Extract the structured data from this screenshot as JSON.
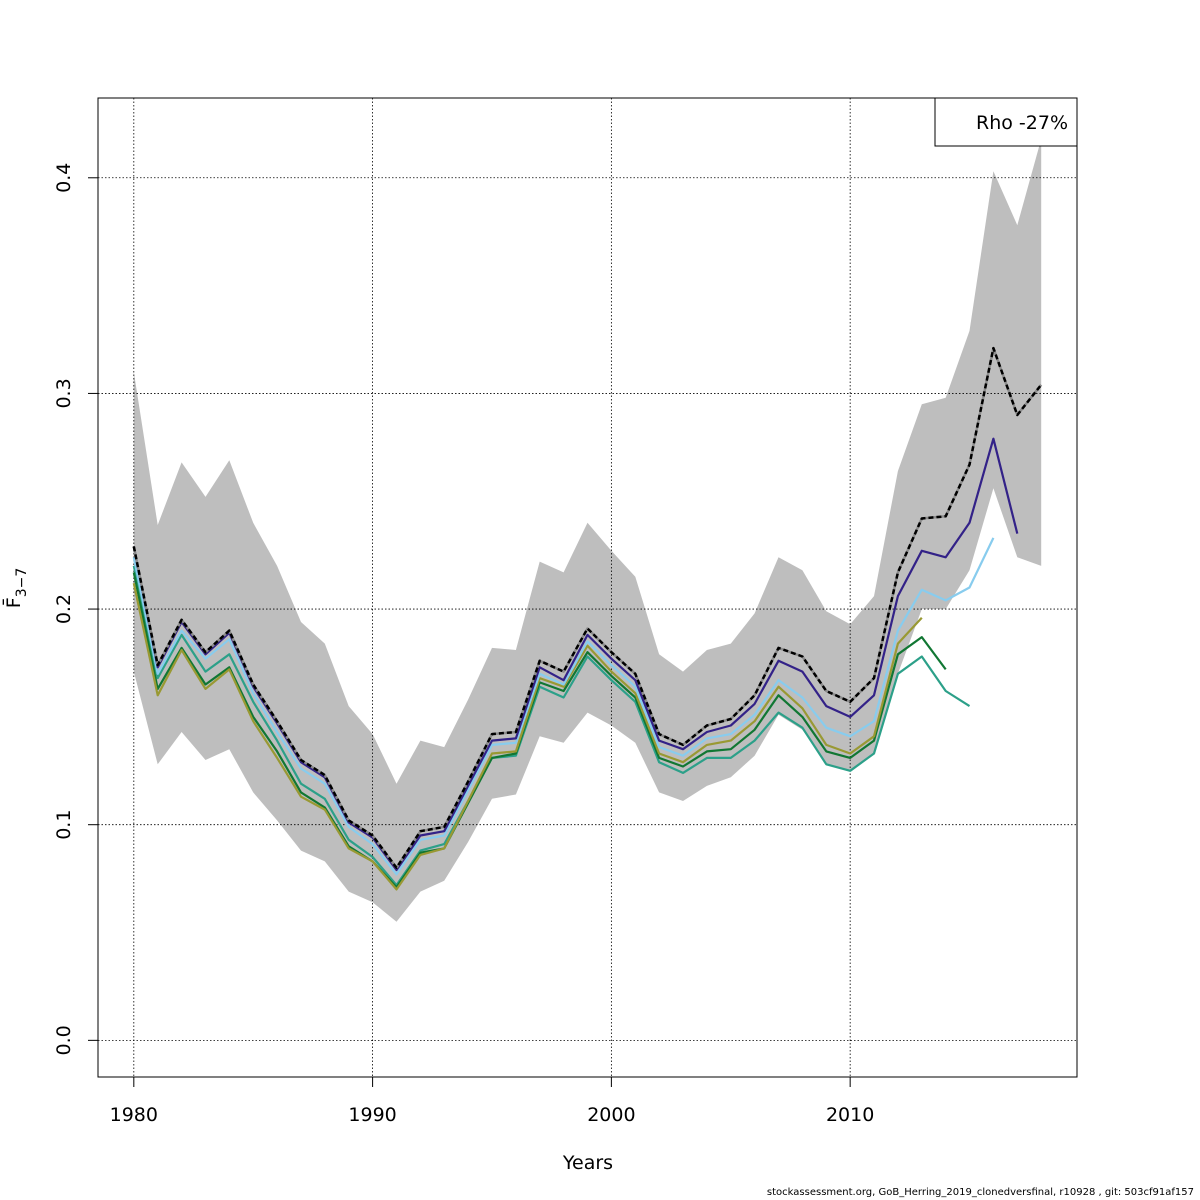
{
  "chart_data": {
    "type": "line",
    "xlabel": "Years",
    "ylabel": "F̄",
    "ylabel_sub": "3−7",
    "xlim": [
      1978.5,
      2019.5
    ],
    "ylim": [
      -0.017,
      0.437
    ],
    "xticks": [
      1980,
      1990,
      2000,
      2010
    ],
    "xtick_labels": [
      "1980",
      "1990",
      "2000",
      "2010"
    ],
    "yticks": [
      0.0,
      0.1,
      0.2,
      0.3,
      0.4
    ],
    "ytick_labels": [
      "0.0",
      "0.1",
      "0.2",
      "0.3",
      "0.4"
    ],
    "grid": true,
    "legend": {
      "text": "Rho -27%",
      "placement": "top-right"
    },
    "band": {
      "color": "#bebebe",
      "x": [
        1980,
        1981,
        1982,
        1983,
        1984,
        1985,
        1986,
        1987,
        1988,
        1989,
        1990,
        1991,
        1992,
        1993,
        1994,
        1995,
        1996,
        1997,
        1998,
        1999,
        2000,
        2001,
        2002,
        2003,
        2004,
        2005,
        2006,
        2007,
        2008,
        2009,
        2010,
        2011,
        2012,
        2013,
        2014,
        2015,
        2016,
        2017,
        2018
      ],
      "upper": [
        0.31,
        0.239,
        0.268,
        0.252,
        0.269,
        0.24,
        0.22,
        0.194,
        0.184,
        0.155,
        0.142,
        0.119,
        0.139,
        0.136,
        0.158,
        0.182,
        0.181,
        0.222,
        0.217,
        0.24,
        0.227,
        0.215,
        0.179,
        0.171,
        0.181,
        0.184,
        0.198,
        0.224,
        0.218,
        0.199,
        0.193,
        0.206,
        0.264,
        0.295,
        0.298,
        0.329,
        0.403,
        0.378,
        0.418
      ],
      "lower": [
        0.171,
        0.128,
        0.143,
        0.13,
        0.135,
        0.115,
        0.102,
        0.088,
        0.083,
        0.069,
        0.064,
        0.055,
        0.069,
        0.074,
        0.092,
        0.112,
        0.114,
        0.141,
        0.138,
        0.152,
        0.146,
        0.138,
        0.115,
        0.111,
        0.118,
        0.122,
        0.132,
        0.151,
        0.144,
        0.128,
        0.125,
        0.133,
        0.17,
        0.2,
        0.2,
        0.218,
        0.256,
        0.224,
        0.22
      ]
    },
    "series": [
      {
        "color": "#2ca089",
        "x": [
          1980,
          1981,
          1982,
          1983,
          1984,
          1985,
          1986,
          1987,
          1988,
          1989,
          1990,
          1991,
          1992,
          1993,
          1994,
          1995,
          1996,
          1997,
          1998,
          1999,
          2000,
          2001,
          2002,
          2003,
          2004,
          2005,
          2006,
          2007,
          2008,
          2009,
          2010,
          2011,
          2012,
          2013,
          2014,
          2015
        ],
        "values": [
          0.22,
          0.168,
          0.188,
          0.171,
          0.179,
          0.157,
          0.139,
          0.119,
          0.112,
          0.093,
          0.085,
          0.072,
          0.088,
          0.091,
          0.111,
          0.131,
          0.132,
          0.164,
          0.159,
          0.178,
          0.167,
          0.157,
          0.129,
          0.124,
          0.131,
          0.131,
          0.139,
          0.152,
          0.145,
          0.128,
          0.125,
          0.133,
          0.17,
          0.178,
          0.162,
          0.155
        ]
      },
      {
        "color": "#117733",
        "x": [
          1980,
          1981,
          1982,
          1983,
          1984,
          1985,
          1986,
          1987,
          1988,
          1989,
          1990,
          1991,
          1992,
          1993,
          1994,
          1995,
          1996,
          1997,
          1998,
          1999,
          2000,
          2001,
          2002,
          2003,
          2004,
          2005,
          2006,
          2007,
          2008,
          2009,
          2010,
          2011,
          2012,
          2013,
          2014
        ],
        "values": [
          0.217,
          0.163,
          0.182,
          0.165,
          0.173,
          0.15,
          0.134,
          0.115,
          0.108,
          0.09,
          0.083,
          0.071,
          0.087,
          0.089,
          0.11,
          0.131,
          0.133,
          0.166,
          0.162,
          0.18,
          0.169,
          0.159,
          0.131,
          0.127,
          0.134,
          0.135,
          0.144,
          0.16,
          0.15,
          0.134,
          0.131,
          0.139,
          0.179,
          0.187,
          0.172
        ]
      },
      {
        "color": "#999933",
        "x": [
          1980,
          1981,
          1982,
          1983,
          1984,
          1985,
          1986,
          1987,
          1988,
          1989,
          1990,
          1991,
          1992,
          1993,
          1994,
          1995,
          1996,
          1997,
          1998,
          1999,
          2000,
          2001,
          2002,
          2003,
          2004,
          2005,
          2006,
          2007,
          2008,
          2009,
          2010,
          2011,
          2012,
          2013
        ],
        "values": [
          0.212,
          0.16,
          0.181,
          0.163,
          0.172,
          0.148,
          0.131,
          0.113,
          0.107,
          0.089,
          0.083,
          0.07,
          0.086,
          0.089,
          0.111,
          0.133,
          0.134,
          0.168,
          0.164,
          0.183,
          0.171,
          0.161,
          0.133,
          0.129,
          0.137,
          0.139,
          0.148,
          0.164,
          0.154,
          0.137,
          0.133,
          0.141,
          0.184,
          0.196
        ]
      },
      {
        "color": "#88ccee",
        "x": [
          1980,
          1981,
          1982,
          1983,
          1984,
          1985,
          1986,
          1987,
          1988,
          1989,
          1990,
          1991,
          1992,
          1993,
          1994,
          1995,
          1996,
          1997,
          1998,
          1999,
          2000,
          2001,
          2002,
          2003,
          2004,
          2005,
          2006,
          2007,
          2008,
          2009,
          2010,
          2011,
          2012,
          2013,
          2014,
          2015,
          2016
        ],
        "values": [
          0.224,
          0.17,
          0.19,
          0.177,
          0.186,
          0.161,
          0.143,
          0.126,
          0.119,
          0.099,
          0.091,
          0.077,
          0.093,
          0.095,
          0.116,
          0.137,
          0.138,
          0.17,
          0.165,
          0.185,
          0.174,
          0.164,
          0.136,
          0.132,
          0.14,
          0.142,
          0.151,
          0.167,
          0.159,
          0.145,
          0.141,
          0.148,
          0.19,
          0.209,
          0.204,
          0.21,
          0.233
        ]
      },
      {
        "color": "#332288",
        "x": [
          1980,
          1981,
          1982,
          1983,
          1984,
          1985,
          1986,
          1987,
          1988,
          1989,
          1990,
          1991,
          1992,
          1993,
          1994,
          1995,
          1996,
          1997,
          1998,
          1999,
          2000,
          2001,
          2002,
          2003,
          2004,
          2005,
          2006,
          2007,
          2008,
          2009,
          2010,
          2011,
          2012,
          2013,
          2014,
          2015,
          2016,
          2017
        ],
        "values": [
          0.229,
          0.173,
          0.194,
          0.179,
          0.189,
          0.164,
          0.147,
          0.129,
          0.122,
          0.101,
          0.094,
          0.079,
          0.095,
          0.097,
          0.118,
          0.139,
          0.14,
          0.173,
          0.167,
          0.188,
          0.177,
          0.167,
          0.139,
          0.135,
          0.143,
          0.146,
          0.156,
          0.176,
          0.171,
          0.155,
          0.15,
          0.16,
          0.206,
          0.227,
          0.224,
          0.24,
          0.279,
          0.235
        ]
      },
      {
        "color": "#000000",
        "dashed": true,
        "x": [
          1980,
          1981,
          1982,
          1983,
          1984,
          1985,
          1986,
          1987,
          1988,
          1989,
          1990,
          1991,
          1992,
          1993,
          1994,
          1995,
          1996,
          1997,
          1998,
          1999,
          2000,
          2001,
          2002,
          2003,
          2004,
          2005,
          2006,
          2007,
          2008,
          2009,
          2010,
          2011,
          2012,
          2013,
          2014,
          2015,
          2016,
          2017,
          2018
        ],
        "values": [
          0.229,
          0.174,
          0.195,
          0.18,
          0.19,
          0.165,
          0.148,
          0.13,
          0.123,
          0.102,
          0.095,
          0.08,
          0.097,
          0.099,
          0.12,
          0.142,
          0.143,
          0.176,
          0.171,
          0.191,
          0.18,
          0.17,
          0.142,
          0.137,
          0.146,
          0.149,
          0.16,
          0.182,
          0.178,
          0.162,
          0.157,
          0.168,
          0.217,
          0.242,
          0.243,
          0.267,
          0.321,
          0.29,
          0.304
        ]
      }
    ]
  },
  "footer": "stockassessment.org, GoB_Herring_2019_clonedversfinal, r10928 , git: 503cf91af157"
}
